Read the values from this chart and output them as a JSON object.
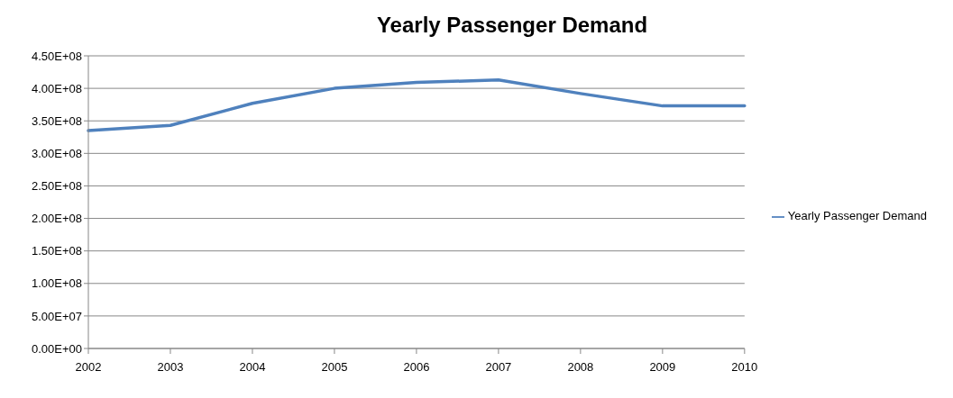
{
  "chart_data": {
    "type": "line",
    "title": "Yearly Passenger Demand",
    "categories": [
      "2002",
      "2003",
      "2004",
      "2005",
      "2006",
      "2007",
      "2008",
      "2009",
      "2010"
    ],
    "series": [
      {
        "name": "Yearly Passenger Demand",
        "color": "#4f81bd",
        "values": [
          335000000,
          343000000,
          377000000,
          400000000,
          409000000,
          413000000,
          392000000,
          373000000,
          373000000
        ]
      }
    ],
    "ylim": [
      0,
      450000000
    ],
    "yticks": [
      {
        "value": 0,
        "label": "0.00E+00"
      },
      {
        "value": 50000000,
        "label": "5.00E+07"
      },
      {
        "value": 100000000,
        "label": "1.00E+08"
      },
      {
        "value": 150000000,
        "label": "1.50E+08"
      },
      {
        "value": 200000000,
        "label": "2.00E+08"
      },
      {
        "value": 250000000,
        "label": "2.50E+08"
      },
      {
        "value": 300000000,
        "label": "3.00E+08"
      },
      {
        "value": 350000000,
        "label": "3.50E+08"
      },
      {
        "value": 400000000,
        "label": "4.00E+08"
      },
      {
        "value": 450000000,
        "label": "4.50E+08"
      }
    ],
    "grid": "y",
    "legend": "right",
    "marker": "none",
    "line_style": "solid"
  }
}
